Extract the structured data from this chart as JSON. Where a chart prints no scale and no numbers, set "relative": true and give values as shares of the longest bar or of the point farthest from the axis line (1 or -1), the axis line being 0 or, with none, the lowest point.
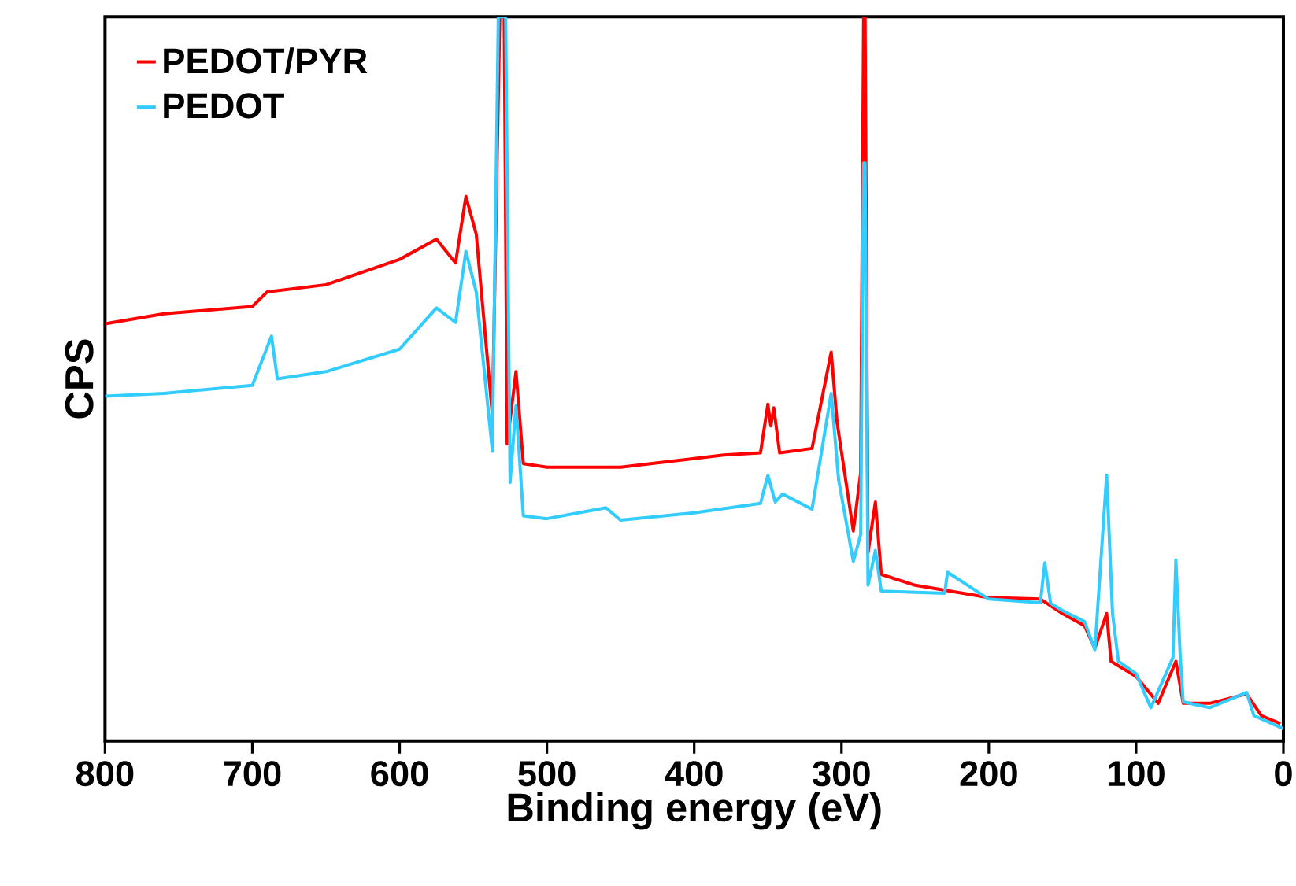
{
  "chart_data": {
    "type": "line",
    "xlabel": "Binding energy (eV)",
    "ylabel": "CPS",
    "relative": true,
    "xlim": [
      800,
      0
    ],
    "xticks": [
      800,
      700,
      600,
      500,
      400,
      300,
      200,
      100,
      0
    ],
    "legend": "top left",
    "grid": false,
    "marker": "none",
    "line_style": "solid",
    "series": [
      {
        "name": "PEDOT/PYR",
        "color": "#ff0000",
        "x": [
          800,
          760,
          700,
          690,
          650,
          600,
          575,
          562,
          555,
          548,
          537,
          532,
          529,
          527,
          521,
          516,
          500,
          450,
          400,
          380,
          355,
          350,
          348,
          346,
          342,
          320,
          307,
          303,
          292,
          287,
          285,
          284,
          282,
          277,
          273,
          250,
          200,
          165,
          150,
          135,
          128,
          120,
          117,
          100,
          85,
          73,
          68,
          50,
          25,
          15,
          2
        ],
        "values": [
          0.576,
          0.59,
          0.6,
          0.62,
          0.63,
          0.665,
          0.693,
          0.66,
          0.752,
          0.7,
          0.45,
          1.0,
          1.0,
          0.41,
          0.51,
          0.383,
          0.378,
          0.378,
          0.39,
          0.395,
          0.398,
          0.465,
          0.435,
          0.46,
          0.398,
          0.404,
          0.537,
          0.44,
          0.29,
          0.37,
          1.0,
          1.0,
          0.26,
          0.33,
          0.23,
          0.215,
          0.198,
          0.196,
          0.176,
          0.159,
          0.128,
          0.176,
          0.11,
          0.089,
          0.052,
          0.11,
          0.052,
          0.052,
          0.065,
          0.035,
          0.024
        ]
      },
      {
        "name": "PEDOT",
        "color": "#33ccff",
        "x": [
          800,
          760,
          700,
          687,
          683,
          650,
          600,
          575,
          562,
          555,
          548,
          537,
          533,
          528,
          525,
          521,
          516,
          500,
          460,
          450,
          400,
          355,
          350,
          345,
          340,
          320,
          307,
          302,
          292,
          287,
          285,
          284,
          282,
          277,
          273,
          230,
          228,
          200,
          165,
          162,
          158,
          150,
          135,
          128,
          120,
          116,
          112,
          100,
          90,
          75,
          73,
          70,
          68,
          50,
          25,
          20,
          0
        ],
        "values": [
          0.476,
          0.48,
          0.491,
          0.559,
          0.5,
          0.51,
          0.541,
          0.598,
          0.578,
          0.676,
          0.62,
          0.4,
          1.0,
          1.0,
          0.357,
          0.463,
          0.311,
          0.307,
          0.322,
          0.305,
          0.315,
          0.328,
          0.367,
          0.33,
          0.341,
          0.32,
          0.48,
          0.361,
          0.248,
          0.285,
          0.798,
          0.798,
          0.215,
          0.263,
          0.207,
          0.204,
          0.233,
          0.196,
          0.191,
          0.246,
          0.19,
          0.18,
          0.165,
          0.126,
          0.367,
          0.176,
          0.11,
          0.093,
          0.046,
          0.115,
          0.25,
          0.115,
          0.054,
          0.046,
          0.067,
          0.035,
          0.017
        ]
      }
    ]
  }
}
